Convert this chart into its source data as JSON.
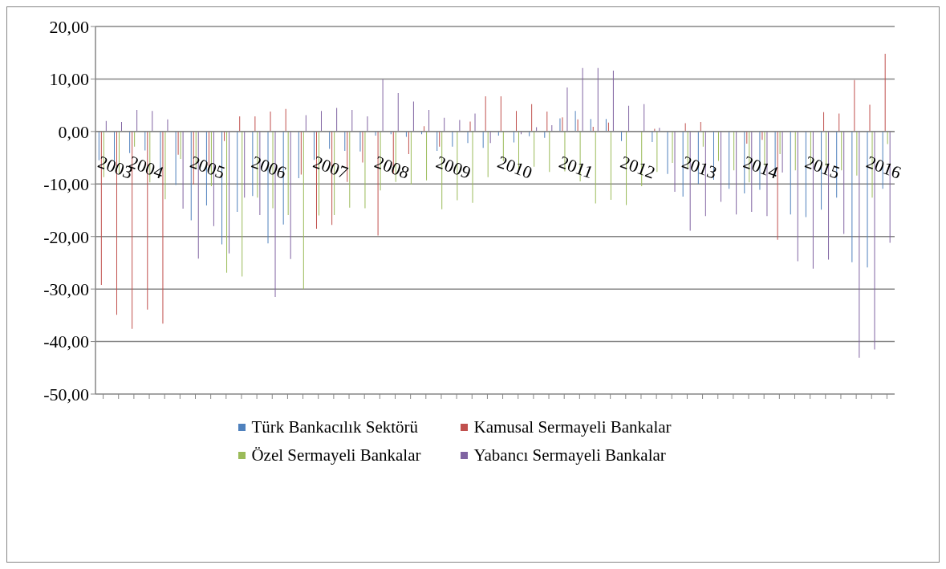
{
  "chart_data": {
    "type": "bar",
    "categories": [
      "2003",
      null,
      "2004",
      null,
      null,
      null,
      "2005",
      null,
      null,
      null,
      "2006",
      null,
      null,
      null,
      "2007",
      null,
      null,
      null,
      "2008",
      null,
      null,
      null,
      "2009",
      null,
      null,
      null,
      "2010",
      null,
      null,
      null,
      "2011",
      null,
      null,
      null,
      "2012",
      null,
      null,
      null,
      "2013",
      null,
      null,
      null,
      "2014",
      null,
      null,
      null,
      "2015",
      null,
      null,
      null,
      "2016",
      null
    ],
    "series": [
      {
        "name": "Türk Bankacılık Sektörü",
        "color": "#4f81bd",
        "values": [
          -5.5,
          -6.3,
          -4.1,
          -3.6,
          -7.8,
          -10.2,
          -16.9,
          -14.1,
          -21.5,
          -15.3,
          -12.3,
          -21.3,
          -17.7,
          -8.9,
          -5.4,
          -3.3,
          -3.7,
          -3.8,
          -0.8,
          -0.5,
          -1.0,
          -0.5,
          -3.7,
          -2.9,
          -2.2,
          -3.1,
          -0.8,
          -2.1,
          -0.9,
          -1.2,
          2.5,
          3.9,
          2.4,
          2.4,
          -1.8,
          null,
          -2.0,
          -8.1,
          -12.4,
          -10.0,
          -9.2,
          -10.9,
          -11.8,
          -11.1,
          -8.4,
          -15.8,
          -16.3,
          -14.9,
          -12.6,
          -24.9,
          -25.9,
          -10.9
        ]
      },
      {
        "name": "Kamusal Sermayeli Bankalar",
        "color": "#c0504d",
        "values": [
          -29.2,
          -34.9,
          -37.6,
          -33.9,
          -36.6,
          -4.4,
          -10.1,
          -6.8,
          -1.8,
          2.9,
          2.9,
          3.8,
          4.3,
          -8.2,
          -18.5,
          -17.8,
          -9.6,
          -5.9,
          -19.8,
          -8.1,
          -4.3,
          1.0,
          -2.9,
          null,
          1.9,
          6.7,
          6.7,
          3.9,
          5.2,
          3.8,
          2.7,
          2.3,
          0.9,
          1.7,
          null,
          0,
          0.5,
          0,
          1.6,
          1.8,
          0,
          0,
          -2.3,
          -1.6,
          -20.6,
          0,
          0,
          3.7,
          3.4,
          9.8,
          5.1,
          14.8
        ]
      },
      {
        "name": "Özel Sermayeli Bankalar",
        "color": "#9bbb59",
        "values": [
          -8.7,
          -8.1,
          -2.9,
          -9.7,
          -12.9,
          -5.2,
          -7.2,
          -10.4,
          -26.9,
          -27.6,
          -12.6,
          -14.6,
          -15.9,
          -30.0,
          -16.0,
          -15.9,
          -14.5,
          -14.6,
          -11.2,
          -9.6,
          -10.1,
          -9.3,
          -14.8,
          -13.1,
          -13.6,
          -8.7,
          -5.6,
          -7.4,
          -6.7,
          -7.7,
          -7.6,
          -9.5,
          -13.7,
          -13.0,
          -14.0,
          -10.4,
          -7.7,
          -6.0,
          -7.1,
          -2.9,
          -5.6,
          -7.4,
          -9.7,
          -6.5,
          -4.3,
          -7.4,
          -6.4,
          -6.6,
          -7.4,
          -8.4,
          -12.6,
          -2.4
        ]
      },
      {
        "name": "Yabancı Sermayeli Bankalar",
        "color": "#8064a2",
        "values": [
          2.0,
          1.8,
          4.1,
          3.9,
          2.3,
          -14.7,
          -24.2,
          -18.0,
          -23.2,
          -12.6,
          -15.9,
          -31.5,
          -24.3,
          3.1,
          3.9,
          4.5,
          4.1,
          2.9,
          9.9,
          7.3,
          5.7,
          4.1,
          2.6,
          2.2,
          3.4,
          -2.2,
          0,
          -0.5,
          0.8,
          1.2,
          8.4,
          12.1,
          12.1,
          11.6,
          4.9,
          5.2,
          0.7,
          -11.5,
          -18.9,
          -16.1,
          -13.4,
          -15.8,
          -15.3,
          -16.1,
          -7.8,
          -24.7,
          -26.1,
          -24.4,
          -19.5,
          -43.1,
          -41.5,
          -21.2
        ]
      }
    ],
    "ylim": [
      -50,
      20
    ],
    "yticks": [
      {
        "value": -50,
        "label": "-50,00"
      },
      {
        "value": -40,
        "label": "-40,00"
      },
      {
        "value": -30,
        "label": "-30,00"
      },
      {
        "value": -20,
        "label": "-20,00"
      },
      {
        "value": -10,
        "label": "-10,00"
      },
      {
        "value": 0,
        "label": "0,00"
      },
      {
        "value": 10,
        "label": "10,00"
      },
      {
        "value": 20,
        "label": "20,00"
      }
    ],
    "grid": "y",
    "legend": "bottom"
  }
}
